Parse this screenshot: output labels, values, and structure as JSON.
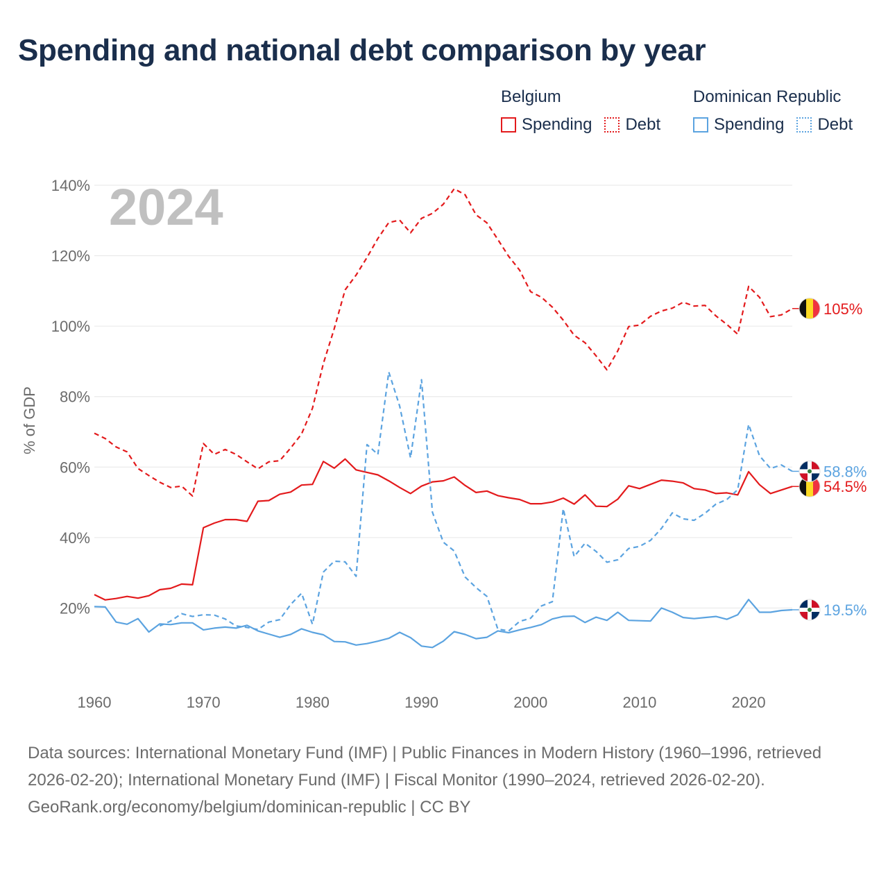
{
  "title": "Spending and national debt comparison by year",
  "legend": {
    "belgium": {
      "label": "Belgium",
      "spending": "Spending",
      "debt": "Debt",
      "color": "#e31a1c"
    },
    "dominican": {
      "label": "Dominican Republic",
      "spending": "Spending",
      "debt": "Debt",
      "color": "#5ba3e0"
    }
  },
  "footer": {
    "sources": "Data sources: International Monetary Fund (IMF) | Public Finances in Modern History (1960–1996, retrieved 2026-02-20); International Monetary Fund (IMF) | Fiscal Monitor (1990–2024, retrieved 2026-02-20).",
    "attribution": "GeoRank.org/economy/belgium/dominican-republic | CC BY"
  },
  "chart_data": {
    "type": "line",
    "year_watermark": "2024",
    "ylabel": "% of GDP",
    "xlim": [
      1960,
      2024
    ],
    "ylim": [
      0,
      140
    ],
    "x_ticks": [
      1960,
      1970,
      1980,
      1990,
      2000,
      2010,
      2020
    ],
    "y_ticks": [
      20,
      40,
      60,
      80,
      100,
      120,
      140
    ],
    "y_tick_labels": [
      "20%",
      "40%",
      "60%",
      "80%",
      "100%",
      "120%",
      "140%"
    ],
    "x": [
      1960,
      1961,
      1962,
      1963,
      1964,
      1965,
      1966,
      1967,
      1968,
      1969,
      1970,
      1971,
      1972,
      1973,
      1974,
      1975,
      1976,
      1977,
      1978,
      1979,
      1980,
      1981,
      1982,
      1983,
      1984,
      1985,
      1986,
      1987,
      1988,
      1989,
      1990,
      1991,
      1992,
      1993,
      1994,
      1995,
      1996,
      1997,
      1998,
      1999,
      2000,
      2001,
      2002,
      2003,
      2004,
      2005,
      2006,
      2007,
      2008,
      2009,
      2010,
      2011,
      2012,
      2013,
      2014,
      2015,
      2016,
      2017,
      2018,
      2019,
      2020,
      2021,
      2022,
      2023,
      2024
    ],
    "series": [
      {
        "name": "Belgium Spending",
        "country": "Belgium",
        "style": "solid",
        "color": "#e31a1c",
        "end_label": "54.5%",
        "values": [
          23.8,
          22.3,
          22.7,
          23.3,
          22.8,
          23.5,
          25.2,
          25.6,
          26.8,
          26.6,
          42.8,
          44.1,
          45.1,
          45.1,
          44.6,
          50.3,
          50.5,
          52.3,
          52.9,
          54.9,
          55.1,
          61.6,
          59.7,
          62.3,
          59.2,
          58.5,
          57.8,
          56.1,
          54.2,
          52.5,
          54.6,
          55.8,
          56.1,
          57.2,
          54.8,
          52.8,
          53.2,
          51.9,
          51.3,
          50.8,
          49.6,
          49.6,
          50.1,
          51.2,
          49.5,
          52.1,
          48.9,
          48.8,
          50.9,
          54.7,
          53.9,
          55.1,
          56.3,
          56.0,
          55.5,
          53.9,
          53.5,
          52.5,
          52.7,
          52.1,
          58.7,
          55.0,
          52.5,
          53.5,
          54.5
        ]
      },
      {
        "name": "Belgium Debt",
        "country": "Belgium",
        "style": "dashed",
        "color": "#e31a1c",
        "end_label": "105%",
        "values": [
          69.6,
          68.1,
          65.7,
          64.3,
          59.6,
          57.6,
          55.7,
          54.2,
          54.6,
          51.8,
          66.7,
          63.6,
          65.0,
          63.6,
          61.5,
          59.5,
          61.5,
          61.8,
          65.4,
          69.4,
          76.7,
          89.4,
          99.3,
          110.3,
          114.5,
          119.5,
          124.9,
          129.4,
          130.1,
          126.5,
          130.6,
          132.0,
          134.6,
          139.0,
          137.3,
          131.6,
          129.3,
          124.6,
          119.8,
          115.9,
          109.8,
          108.2,
          105.4,
          101.7,
          97.4,
          95.3,
          91.6,
          87.6,
          93.0,
          99.9,
          100.3,
          102.8,
          104.3,
          105.1,
          106.8,
          105.7,
          105.9,
          102.9,
          100.5,
          97.7,
          111.3,
          108.2,
          102.7,
          103.2,
          105.0
        ]
      },
      {
        "name": "Dominican Republic Spending",
        "country": "Dominican Republic",
        "style": "solid",
        "color": "#5ba3e0",
        "end_label": "19.5%",
        "values": [
          20.4,
          20.3,
          16.0,
          15.4,
          17.0,
          13.2,
          15.5,
          15.3,
          15.8,
          15.8,
          13.8,
          14.3,
          14.6,
          14.3,
          15.1,
          13.5,
          12.6,
          11.7,
          12.5,
          14.1,
          13.1,
          12.4,
          10.5,
          10.4,
          9.5,
          9.9,
          10.6,
          11.4,
          13.1,
          11.6,
          9.2,
          8.8,
          10.6,
          13.3,
          12.5,
          11.3,
          11.7,
          13.5,
          13.0,
          13.8,
          14.5,
          15.3,
          16.9,
          17.6,
          17.7,
          15.9,
          17.4,
          16.5,
          18.8,
          16.5,
          16.4,
          16.3,
          20.0,
          18.8,
          17.3,
          17.0,
          17.3,
          17.6,
          16.8,
          18.1,
          22.4,
          18.8,
          18.8,
          19.3,
          19.5
        ]
      },
      {
        "name": "Dominican Republic Debt",
        "country": "Dominican Republic",
        "style": "dashed",
        "color": "#5ba3e0",
        "end_label": "58.8%",
        "values": [
          null,
          null,
          null,
          null,
          null,
          null,
          14.9,
          16.3,
          18.4,
          17.6,
          18.1,
          18.0,
          16.9,
          14.9,
          14.5,
          13.9,
          16.0,
          16.7,
          21.0,
          24.2,
          15.4,
          30.2,
          33.3,
          33.1,
          29.0,
          66.4,
          63.6,
          87.0,
          77.3,
          62.6,
          84.8,
          47.2,
          38.7,
          36.2,
          28.8,
          25.8,
          23.3,
          14.0,
          13.5,
          16.2,
          17.1,
          20.6,
          21.8,
          48.2,
          34.6,
          38.4,
          36.1,
          33.0,
          33.7,
          36.9,
          37.5,
          39.2,
          42.6,
          47.0,
          45.3,
          44.9,
          46.9,
          49.5,
          50.8,
          53.6,
          72.1,
          63.2,
          59.6,
          60.6,
          58.8
        ]
      }
    ]
  }
}
